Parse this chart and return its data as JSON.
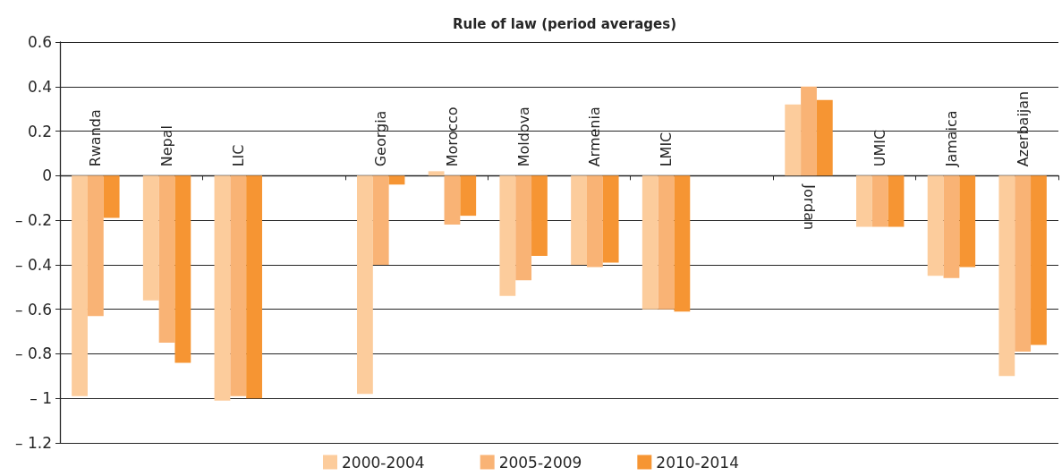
{
  "chart_data": {
    "type": "bar",
    "title": "Rule of law (period averages)",
    "categories": [
      "Rwanda",
      "Nepal",
      "LIC",
      null,
      "Georgia",
      "Morocco",
      "Moldova",
      "Armenia",
      "LMIC",
      null,
      "Jordan",
      "UMIC",
      "Jamaica",
      "Azerbaijan"
    ],
    "series": [
      {
        "name": "2000-2004",
        "color": "#fccc9c",
        "values": [
          -0.99,
          -0.56,
          -1.01,
          null,
          -0.98,
          0.02,
          -0.54,
          -0.4,
          -0.6,
          null,
          0.32,
          -0.23,
          -0.45,
          -0.9
        ]
      },
      {
        "name": "2005-2009",
        "color": "#f9b375",
        "values": [
          -0.63,
          -0.75,
          -0.99,
          null,
          -0.4,
          -0.22,
          -0.47,
          -0.41,
          -0.6,
          null,
          0.4,
          -0.23,
          -0.46,
          -0.79
        ]
      },
      {
        "name": "2010-2014",
        "color": "#f69533",
        "values": [
          -0.19,
          -0.84,
          -1.0,
          null,
          -0.04,
          -0.18,
          -0.36,
          -0.39,
          -0.61,
          null,
          0.34,
          -0.23,
          -0.41,
          -0.76
        ]
      }
    ],
    "ylim": [
      -1.2,
      0.6
    ],
    "yticks": [
      {
        "value": -1.2,
        "label": "– 1.2"
      },
      {
        "value": -1,
        "label": "– 1"
      },
      {
        "value": -0.8,
        "label": "– 0.8"
      },
      {
        "value": -0.6,
        "label": "– 0.6"
      },
      {
        "value": -0.4,
        "label": "– 0.4"
      },
      {
        "value": -0.2,
        "label": "– 0.2"
      },
      0,
      0.2,
      0.4,
      0.6
    ],
    "grid": "y",
    "legend": "bottom"
  }
}
